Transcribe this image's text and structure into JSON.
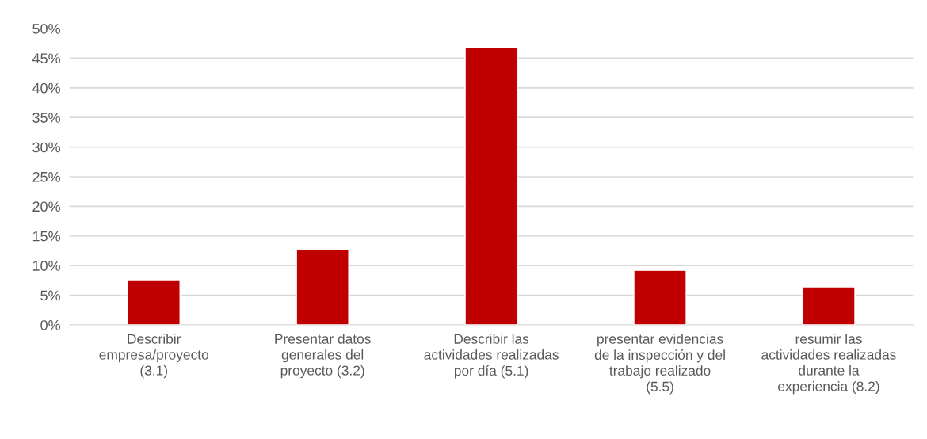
{
  "chart_data": {
    "type": "bar",
    "categories": [
      "Describir\nempresa/proyecto\n(3.1)",
      "Presentar datos\ngenerales del\nproyecto (3.2)",
      "Describir las\nactividades realizadas\npor día (5.1)",
      "presentar evidencias\nde la inspección y del\ntrabajo realizado\n(5.5)",
      "resumir las\nactividades realizadas\ndurante la\nexperiencia (8.2)"
    ],
    "values": [
      7.6,
      12.8,
      46.9,
      9.2,
      6.4
    ],
    "color": "#c00000",
    "ylim": [
      0,
      50
    ],
    "yticks": [
      {
        "value": 0,
        "label": "0%"
      },
      {
        "value": 5,
        "label": "5%"
      },
      {
        "value": 10,
        "label": "10%"
      },
      {
        "value": 15,
        "label": "15%"
      },
      {
        "value": 20,
        "label": "20%"
      },
      {
        "value": 25,
        "label": "25%"
      },
      {
        "value": 30,
        "label": "30%"
      },
      {
        "value": 35,
        "label": "35%"
      },
      {
        "value": 40,
        "label": "40%"
      },
      {
        "value": 45,
        "label": "45%"
      },
      {
        "value": 50,
        "label": "50%"
      }
    ],
    "grid": "y",
    "legend": false
  }
}
